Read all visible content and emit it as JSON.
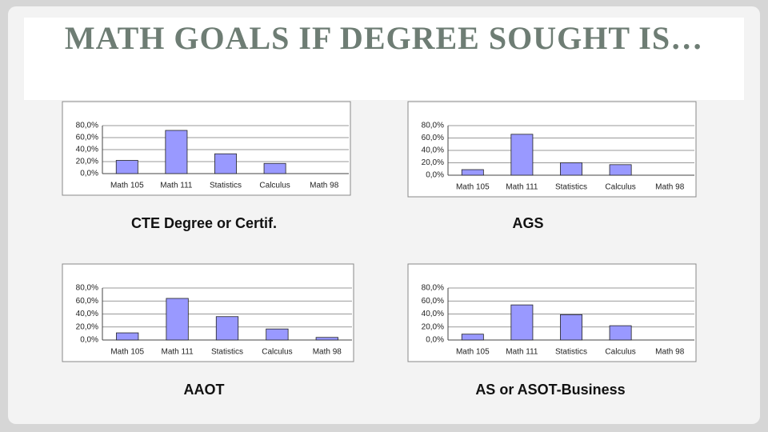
{
  "title": "MATH GOALS IF DEGREE SOUGHT IS…",
  "chart_data": [
    {
      "type": "bar",
      "title": "CTE Degree or Certif.",
      "categories": [
        "Math 105",
        "Math 111",
        "Statistics",
        "Calculus",
        "Math 98"
      ],
      "values": [
        22,
        72,
        33,
        17,
        0
      ],
      "color": "#9999ff",
      "ylim": [
        0,
        80
      ],
      "yticks": [
        {
          "value": 0,
          "label": "0,0%"
        },
        {
          "value": 20,
          "label": "20,0%"
        },
        {
          "value": 40,
          "label": "40,0%"
        },
        {
          "value": 60,
          "label": "60,0%"
        },
        {
          "value": 80,
          "label": "80,0%"
        }
      ],
      "grid": true
    },
    {
      "type": "bar",
      "title": "AGS",
      "categories": [
        "Math 105",
        "Math 111",
        "Statistics",
        "Calculus",
        "Math 98"
      ],
      "values": [
        9,
        66,
        20,
        17,
        0
      ],
      "color": "#9999ff",
      "ylim": [
        0,
        80
      ],
      "yticks": [
        {
          "value": 0,
          "label": "0,0%"
        },
        {
          "value": 20,
          "label": "20,0%"
        },
        {
          "value": 40,
          "label": "40,0%"
        },
        {
          "value": 60,
          "label": "60,0%"
        },
        {
          "value": 80,
          "label": "80,0%"
        }
      ],
      "grid": true
    },
    {
      "type": "bar",
      "title": "AAOT",
      "categories": [
        "Math 105",
        "Math 111",
        "Statistics",
        "Calculus",
        "Math 98"
      ],
      "values": [
        11,
        64,
        36,
        17,
        4
      ],
      "color": "#9999ff",
      "ylim": [
        0,
        80
      ],
      "yticks": [
        {
          "value": 0,
          "label": "0,0%"
        },
        {
          "value": 20,
          "label": "20,0%"
        },
        {
          "value": 40,
          "label": "40,0%"
        },
        {
          "value": 60,
          "label": "60,0%"
        },
        {
          "value": 80,
          "label": "80,0%"
        }
      ],
      "grid": true
    },
    {
      "type": "bar",
      "title": "AS  or ASOT-Business",
      "categories": [
        "Math 105",
        "Math 111",
        "Statistics",
        "Calculus",
        "Math 98"
      ],
      "values": [
        9,
        54,
        39,
        22,
        0
      ],
      "color": "#9999ff",
      "ylim": [
        0,
        80
      ],
      "yticks": [
        {
          "value": 0,
          "label": "0,0%"
        },
        {
          "value": 20,
          "label": "20,0%"
        },
        {
          "value": 40,
          "label": "40,0%"
        },
        {
          "value": 60,
          "label": "60,0%"
        },
        {
          "value": 80,
          "label": "80,0%"
        }
      ],
      "grid": true
    }
  ]
}
